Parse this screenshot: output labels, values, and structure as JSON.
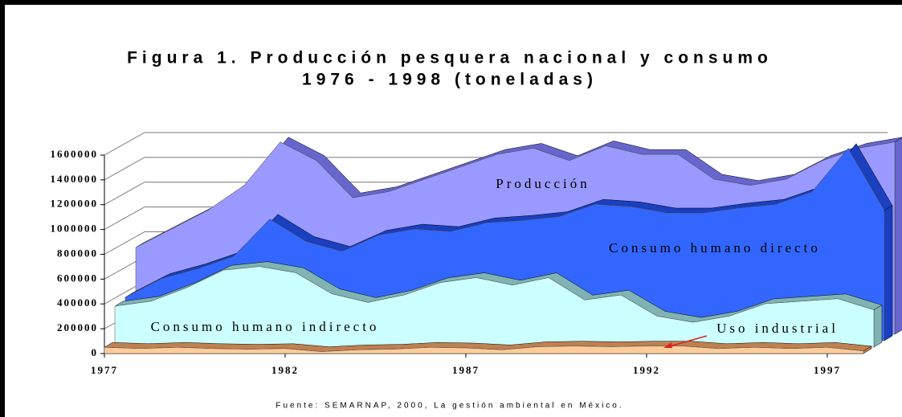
{
  "chart_data": {
    "type": "area",
    "title": "Figura 1. Producción pesquera nacional y consumo",
    "subtitle": "1976 - 1998 (toneladas)",
    "source": "Fuente: SEMARNAP, 2000, La gestión ambiental en México.",
    "x": [
      1977,
      1978,
      1979,
      1980,
      1981,
      1982,
      1983,
      1984,
      1985,
      1986,
      1987,
      1988,
      1989,
      1990,
      1991,
      1992,
      1993,
      1994,
      1995,
      1996,
      1997,
      1998
    ],
    "xlim": [
      1977,
      1998
    ],
    "xticks": [
      1977,
      1982,
      1987,
      1992,
      1997
    ],
    "ylim": [
      0,
      1600000
    ],
    "yticks": [
      0,
      200000,
      400000,
      600000,
      800000,
      1000000,
      1200000,
      1400000,
      1600000
    ],
    "grid": true,
    "series": [
      {
        "name": "Producción",
        "color": "#9999ff",
        "values": [
          700000,
          850000,
          1000000,
          1200000,
          1550000,
          1400000,
          1100000,
          1150000,
          1250000,
          1350000,
          1450000,
          1500000,
          1400000,
          1520000,
          1450000,
          1450000,
          1250000,
          1200000,
          1250000,
          1400000,
          1500000,
          1550000
        ]
      },
      {
        "name": "Consumo humano directo",
        "color": "#3366ff",
        "values": [
          350000,
          500000,
          580000,
          680000,
          980000,
          800000,
          720000,
          850000,
          900000,
          880000,
          950000,
          970000,
          1000000,
          1100000,
          1080000,
          1030000,
          1030000,
          1070000,
          1100000,
          1200000,
          1550000,
          1050000
        ]
      },
      {
        "name": "Consumo humano indirecto",
        "color": "#ccffff",
        "values": [
          330000,
          370000,
          480000,
          620000,
          650000,
          600000,
          430000,
          360000,
          420000,
          520000,
          560000,
          500000,
          560000,
          380000,
          420000,
          250000,
          200000,
          250000,
          350000,
          370000,
          390000,
          300000
        ]
      },
      {
        "name": "Uso industrial",
        "color": "#ffcc99",
        "values": [
          50000,
          40000,
          50000,
          40000,
          35000,
          40000,
          15000,
          30000,
          35000,
          50000,
          45000,
          30000,
          55000,
          60000,
          55000,
          60000,
          60000,
          40000,
          50000,
          40000,
          50000,
          20000
        ]
      }
    ]
  }
}
